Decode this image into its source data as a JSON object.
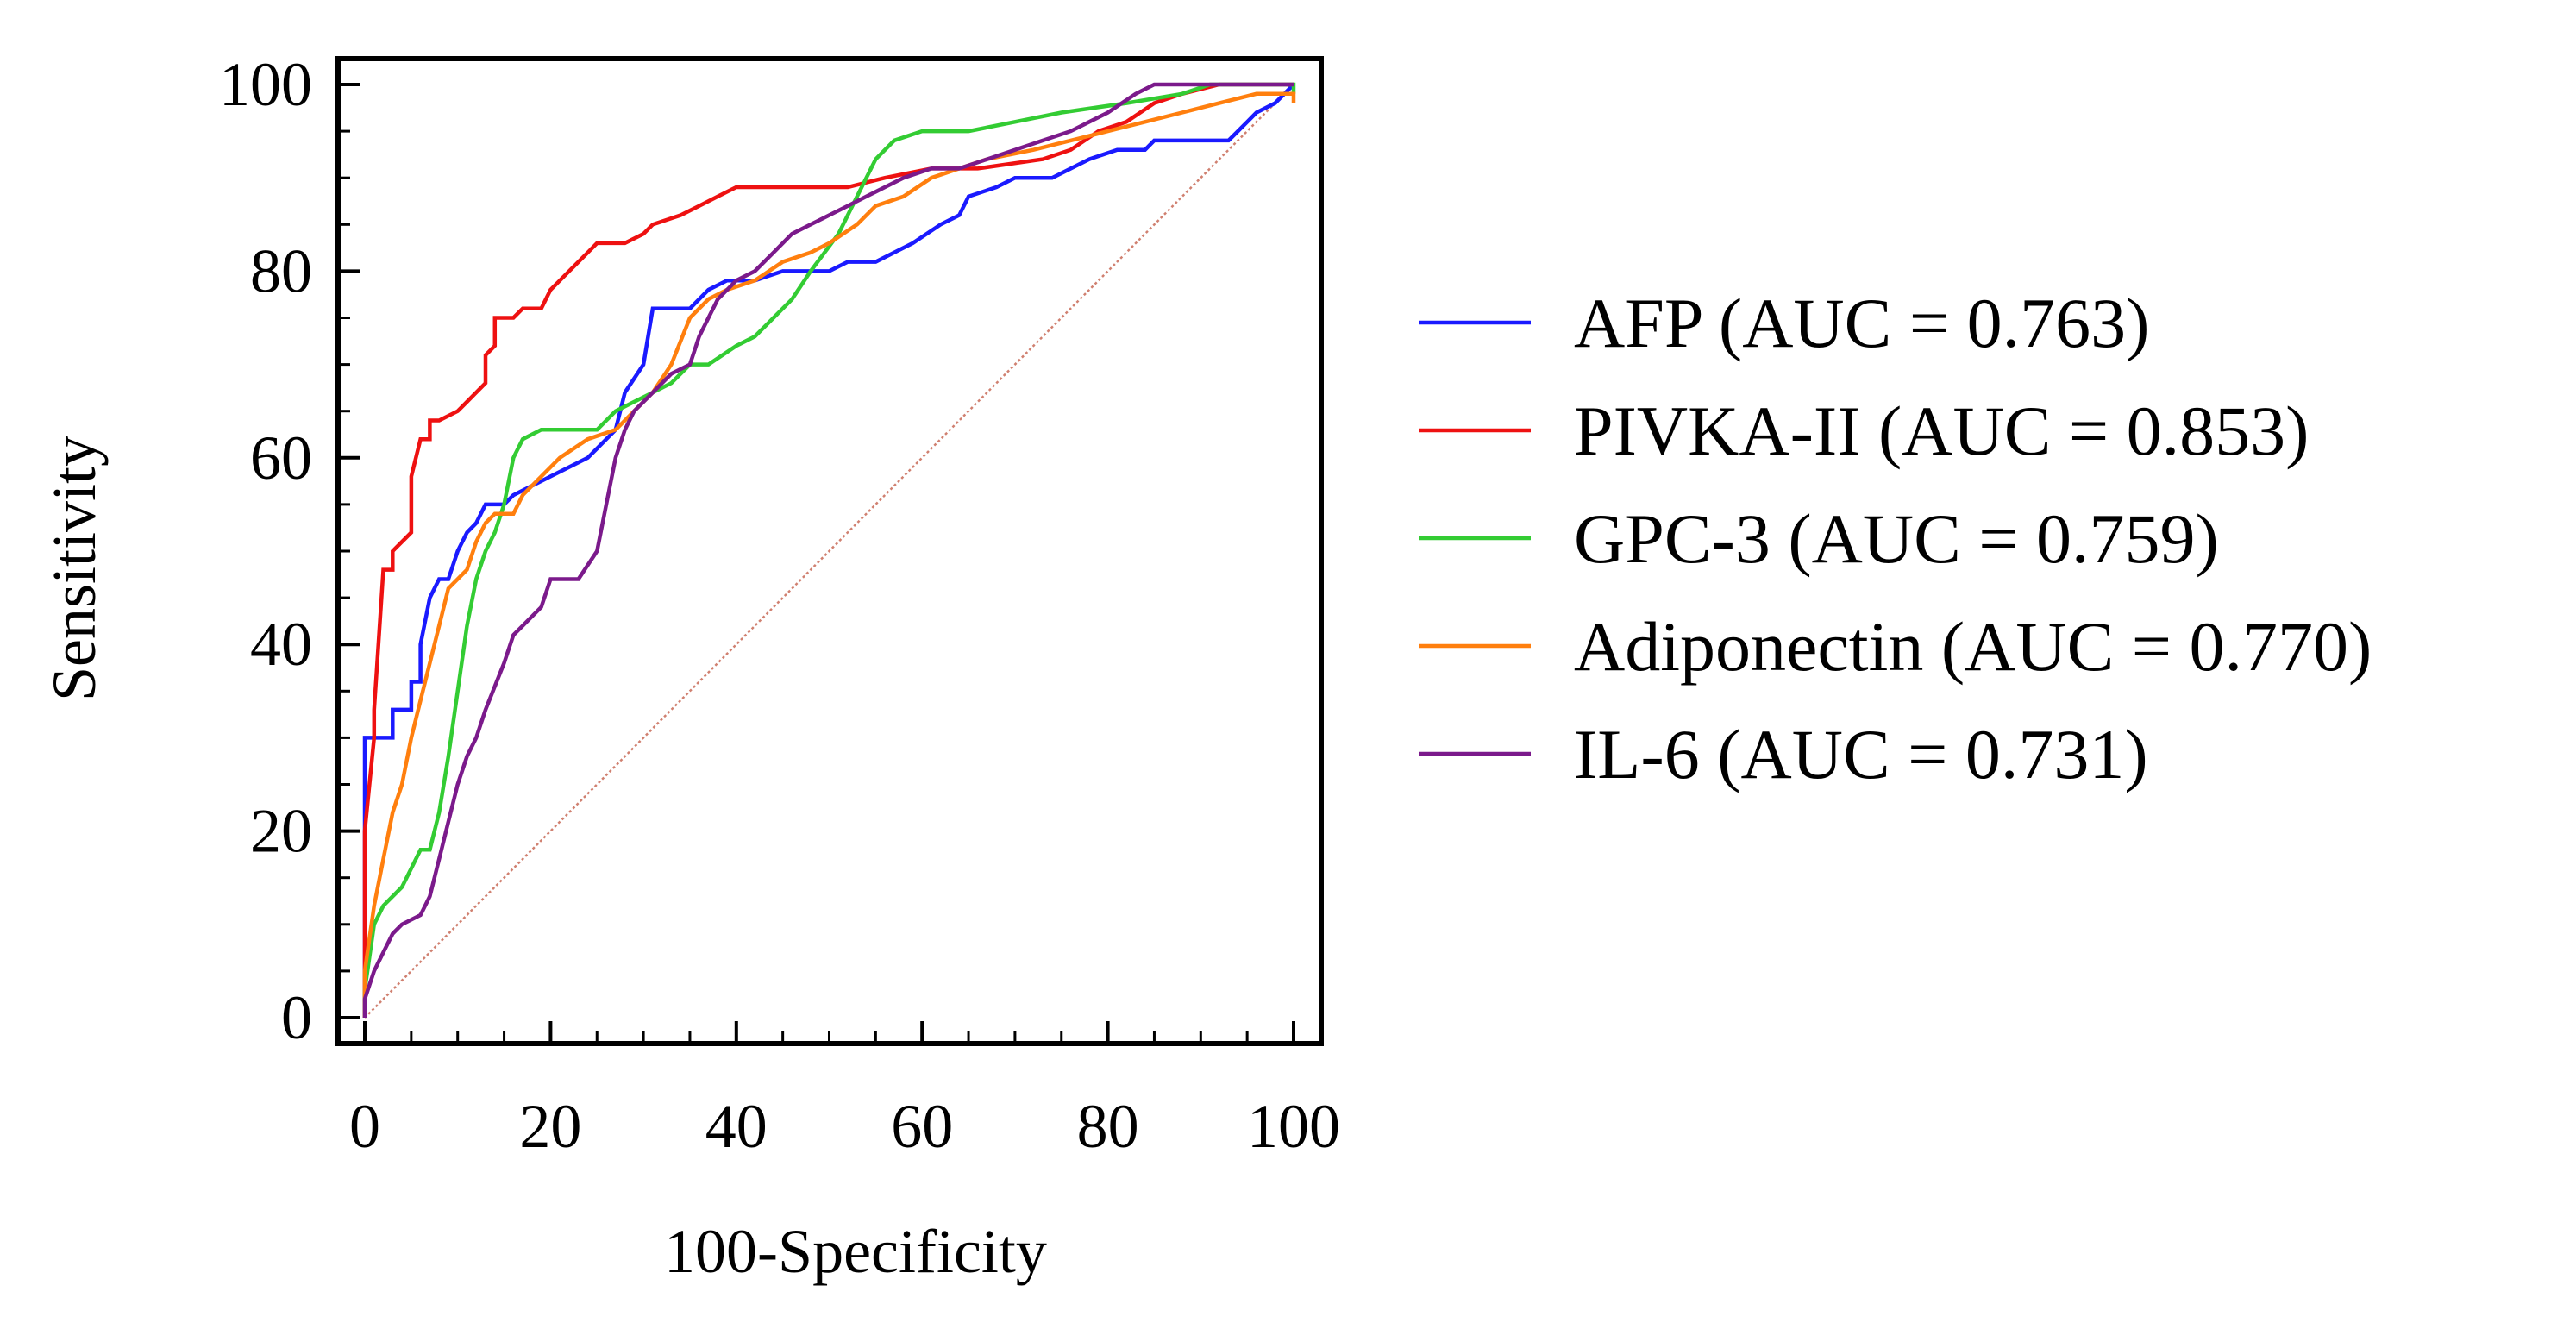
{
  "chart_data": {
    "type": "line",
    "title": "",
    "xlabel": "100-Specificity",
    "ylabel": "Sensitivity",
    "xlim": [
      0,
      100
    ],
    "ylim": [
      0,
      100
    ],
    "xticks": [
      0,
      20,
      40,
      60,
      80,
      100
    ],
    "yticks": [
      0,
      20,
      40,
      60,
      80,
      100
    ],
    "grid": false,
    "legend_position": "right",
    "reference_line": {
      "points": [
        [
          0,
          0
        ],
        [
          100,
          100
        ]
      ],
      "color": "#d08070",
      "style": "dotted"
    },
    "series": [
      {
        "name": "AFP (AUC = 0.763)",
        "color": "#1a1aff",
        "points": [
          [
            0,
            0
          ],
          [
            0,
            30
          ],
          [
            3,
            30
          ],
          [
            3,
            33
          ],
          [
            5,
            33
          ],
          [
            5,
            36
          ],
          [
            6,
            36
          ],
          [
            6,
            40
          ],
          [
            7,
            45
          ],
          [
            8,
            47
          ],
          [
            9,
            47
          ],
          [
            10,
            50
          ],
          [
            11,
            52
          ],
          [
            12,
            53
          ],
          [
            13,
            55
          ],
          [
            15,
            55
          ],
          [
            16,
            56
          ],
          [
            18,
            57
          ],
          [
            20,
            58
          ],
          [
            22,
            59
          ],
          [
            24,
            60
          ],
          [
            25,
            61
          ],
          [
            27,
            63
          ],
          [
            28,
            67
          ],
          [
            30,
            70
          ],
          [
            31,
            76
          ],
          [
            35,
            76
          ],
          [
            37,
            78
          ],
          [
            39,
            79
          ],
          [
            42,
            79
          ],
          [
            45,
            80
          ],
          [
            50,
            80
          ],
          [
            52,
            81
          ],
          [
            55,
            81
          ],
          [
            57,
            82
          ],
          [
            59,
            83
          ],
          [
            62,
            85
          ],
          [
            64,
            86
          ],
          [
            65,
            88
          ],
          [
            68,
            89
          ],
          [
            70,
            90
          ],
          [
            74,
            90
          ],
          [
            78,
            92
          ],
          [
            81,
            93
          ],
          [
            84,
            93
          ],
          [
            85,
            94
          ],
          [
            93,
            94
          ],
          [
            94,
            95
          ],
          [
            95,
            96
          ],
          [
            96,
            97
          ],
          [
            98,
            98
          ],
          [
            100,
            100
          ]
        ]
      },
      {
        "name": "PIVKA-II (AUC = 0.853)",
        "color": "#ee1111",
        "points": [
          [
            0,
            0
          ],
          [
            0,
            20
          ],
          [
            1,
            30
          ],
          [
            1,
            33
          ],
          [
            2,
            48
          ],
          [
            3,
            48
          ],
          [
            3,
            50
          ],
          [
            5,
            52
          ],
          [
            5,
            58
          ],
          [
            6,
            62
          ],
          [
            7,
            62
          ],
          [
            7,
            64
          ],
          [
            8,
            64
          ],
          [
            10,
            65
          ],
          [
            11,
            66
          ],
          [
            12,
            67
          ],
          [
            13,
            68
          ],
          [
            13,
            71
          ],
          [
            14,
            72
          ],
          [
            14,
            75
          ],
          [
            16,
            75
          ],
          [
            17,
            76
          ],
          [
            19,
            76
          ],
          [
            20,
            78
          ],
          [
            21,
            79
          ],
          [
            22,
            80
          ],
          [
            23,
            81
          ],
          [
            24,
            82
          ],
          [
            25,
            83
          ],
          [
            28,
            83
          ],
          [
            30,
            84
          ],
          [
            31,
            85
          ],
          [
            34,
            86
          ],
          [
            36,
            87
          ],
          [
            38,
            88
          ],
          [
            40,
            89
          ],
          [
            52,
            89
          ],
          [
            56,
            90
          ],
          [
            61,
            91
          ],
          [
            66,
            91
          ],
          [
            73,
            92
          ],
          [
            76,
            93
          ],
          [
            79,
            95
          ],
          [
            82,
            96
          ],
          [
            85,
            98
          ],
          [
            88,
            99
          ],
          [
            92,
            100
          ],
          [
            100,
            100
          ]
        ]
      },
      {
        "name": "GPC-3 (AUC = 0.759)",
        "color": "#33cc33",
        "points": [
          [
            0,
            0
          ],
          [
            0,
            3
          ],
          [
            1,
            10
          ],
          [
            2,
            12
          ],
          [
            4,
            14
          ],
          [
            5,
            16
          ],
          [
            6,
            18
          ],
          [
            7,
            18
          ],
          [
            8,
            22
          ],
          [
            9,
            28
          ],
          [
            10,
            35
          ],
          [
            11,
            42
          ],
          [
            12,
            47
          ],
          [
            13,
            50
          ],
          [
            14,
            52
          ],
          [
            15,
            55
          ],
          [
            16,
            60
          ],
          [
            17,
            62
          ],
          [
            19,
            63
          ],
          [
            25,
            63
          ],
          [
            27,
            65
          ],
          [
            29,
            66
          ],
          [
            31,
            67
          ],
          [
            33,
            68
          ],
          [
            35,
            70
          ],
          [
            37,
            70
          ],
          [
            40,
            72
          ],
          [
            42,
            73
          ],
          [
            44,
            75
          ],
          [
            46,
            77
          ],
          [
            48,
            80
          ],
          [
            51,
            84
          ],
          [
            53,
            88
          ],
          [
            55,
            92
          ],
          [
            57,
            94
          ],
          [
            60,
            95
          ],
          [
            65,
            95
          ],
          [
            70,
            96
          ],
          [
            75,
            97
          ],
          [
            82,
            98
          ],
          [
            88,
            99
          ],
          [
            91,
            100
          ],
          [
            100,
            100
          ],
          [
            100,
            99
          ]
        ]
      },
      {
        "name": "Adiponectin (AUC = 0.770)",
        "color": "#ff7f0e",
        "points": [
          [
            0,
            0
          ],
          [
            0,
            5
          ],
          [
            1,
            12
          ],
          [
            2,
            17
          ],
          [
            3,
            22
          ],
          [
            4,
            25
          ],
          [
            5,
            30
          ],
          [
            6,
            34
          ],
          [
            7,
            38
          ],
          [
            8,
            42
          ],
          [
            9,
            46
          ],
          [
            11,
            48
          ],
          [
            12,
            51
          ],
          [
            13,
            53
          ],
          [
            14,
            54
          ],
          [
            16,
            54
          ],
          [
            17,
            56
          ],
          [
            19,
            58
          ],
          [
            21,
            60
          ],
          [
            24,
            62
          ],
          [
            27,
            63
          ],
          [
            29,
            65
          ],
          [
            31,
            67
          ],
          [
            33,
            70
          ],
          [
            35,
            75
          ],
          [
            37,
            77
          ],
          [
            39,
            78
          ],
          [
            42,
            79
          ],
          [
            45,
            81
          ],
          [
            48,
            82
          ],
          [
            50,
            83
          ],
          [
            53,
            85
          ],
          [
            55,
            87
          ],
          [
            58,
            88
          ],
          [
            61,
            90
          ],
          [
            64,
            91
          ],
          [
            67,
            92
          ],
          [
            72,
            93
          ],
          [
            76,
            94
          ],
          [
            80,
            95
          ],
          [
            84,
            96
          ],
          [
            88,
            97
          ],
          [
            92,
            98
          ],
          [
            96,
            99
          ],
          [
            98,
            99
          ],
          [
            100,
            99
          ],
          [
            100,
            98
          ]
        ]
      },
      {
        "name": "IL-6 (AUC = 0.731)",
        "color": "#7b1a8b",
        "points": [
          [
            0,
            0
          ],
          [
            0,
            2
          ],
          [
            1,
            5
          ],
          [
            2,
            7
          ],
          [
            3,
            9
          ],
          [
            4,
            10
          ],
          [
            6,
            11
          ],
          [
            7,
            13
          ],
          [
            8,
            17
          ],
          [
            9,
            21
          ],
          [
            10,
            25
          ],
          [
            11,
            28
          ],
          [
            12,
            30
          ],
          [
            13,
            33
          ],
          [
            15,
            38
          ],
          [
            16,
            41
          ],
          [
            18,
            43
          ],
          [
            19,
            44
          ],
          [
            20,
            47
          ],
          [
            23,
            47
          ],
          [
            25,
            50
          ],
          [
            26,
            55
          ],
          [
            27,
            60
          ],
          [
            28,
            63
          ],
          [
            29,
            65
          ],
          [
            31,
            67
          ],
          [
            33,
            69
          ],
          [
            35,
            70
          ],
          [
            36,
            73
          ],
          [
            37,
            75
          ],
          [
            38,
            77
          ],
          [
            40,
            79
          ],
          [
            42,
            80
          ],
          [
            44,
            82
          ],
          [
            46,
            84
          ],
          [
            48,
            85
          ],
          [
            50,
            86
          ],
          [
            52,
            87
          ],
          [
            54,
            88
          ],
          [
            56,
            89
          ],
          [
            58,
            90
          ],
          [
            61,
            91
          ],
          [
            64,
            91
          ],
          [
            67,
            92
          ],
          [
            70,
            93
          ],
          [
            73,
            94
          ],
          [
            76,
            95
          ],
          [
            80,
            97
          ],
          [
            83,
            99
          ],
          [
            85,
            100
          ],
          [
            100,
            100
          ]
        ]
      }
    ],
    "reference_label": "",
    "plot_colors": {
      "axis": "#000000",
      "background": "#ffffff"
    }
  }
}
